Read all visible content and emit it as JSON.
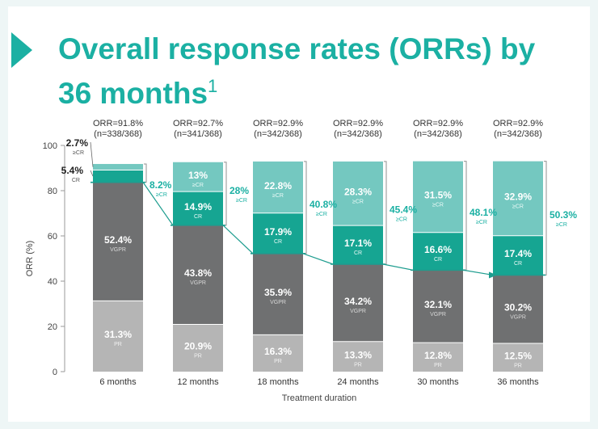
{
  "title": {
    "text": "Overall response rates (ORRs) by 36 months",
    "superscript": "1"
  },
  "colors": {
    "teal": "#1bb0a3",
    "pr": "#b5b5b5",
    "vgpr": "#6f7071",
    "cr": "#16a592",
    "scr": "#74c8c0",
    "arrow": "#1e9d8f",
    "bracket": "#909090"
  },
  "chart_data": {
    "type": "bar",
    "stacked": true,
    "title": "Overall response rates (ORRs) by 36 months",
    "xlabel": "Treatment duration",
    "ylabel": "ORR (%)",
    "ylim": [
      0,
      100
    ],
    "yticks": [
      0,
      20,
      40,
      60,
      80,
      100
    ],
    "categories": [
      "6 months",
      "12 months",
      "18 months",
      "24 months",
      "30 months",
      "36 months"
    ],
    "orr_labels": [
      "ORR=91.8%",
      "ORR=92.7%",
      "ORR=92.9%",
      "ORR=92.9%",
      "ORR=92.9%",
      "ORR=92.9%"
    ],
    "n_labels": [
      "(n=338/368)",
      "(n=341/368)",
      "(n=342/368)",
      "(n=342/368)",
      "(n=342/368)",
      "(n=342/368)"
    ],
    "series": [
      {
        "name": "PR",
        "values": [
          31.3,
          20.9,
          16.3,
          13.3,
          12.8,
          12.5
        ]
      },
      {
        "name": "VGPR",
        "values": [
          52.4,
          43.8,
          35.9,
          34.2,
          32.1,
          30.2
        ]
      },
      {
        "name": "CR",
        "values": [
          5.4,
          14.9,
          17.9,
          17.1,
          16.6,
          17.4
        ]
      },
      {
        "name": "sCR",
        "values": [
          2.7,
          13,
          22.8,
          28.3,
          31.5,
          32.9
        ]
      }
    ],
    "segment_labels": {
      "PR": [
        "31.3%",
        "20.9%",
        "16.3%",
        "13.3%",
        "12.8%",
        "12.5%"
      ],
      "VGPR": [
        "52.4%",
        "43.8%",
        "35.9%",
        "34.2%",
        "32.1%",
        "30.2%"
      ],
      "CR": [
        "5.4%",
        "14.9%",
        "17.9%",
        "17.1%",
        "16.6%",
        "17.4%"
      ],
      "sCR": [
        "2.7%",
        "13%",
        "22.8%",
        "28.3%",
        "31.5%",
        "32.9%"
      ]
    },
    "segment_sublabels": {
      "PR": "PR",
      "VGPR": "VGPR",
      "CR": "CR",
      "sCR": "≥CR"
    },
    "ge_cr_values": [
      8.2,
      28,
      40.8,
      45.4,
      48.1,
      50.3
    ],
    "ge_cr_labels": [
      "8.2%",
      "28%",
      "40.8%",
      "45.4%",
      "48.1%",
      "50.3%"
    ],
    "ge_cr_sublabel": "≥CR"
  }
}
